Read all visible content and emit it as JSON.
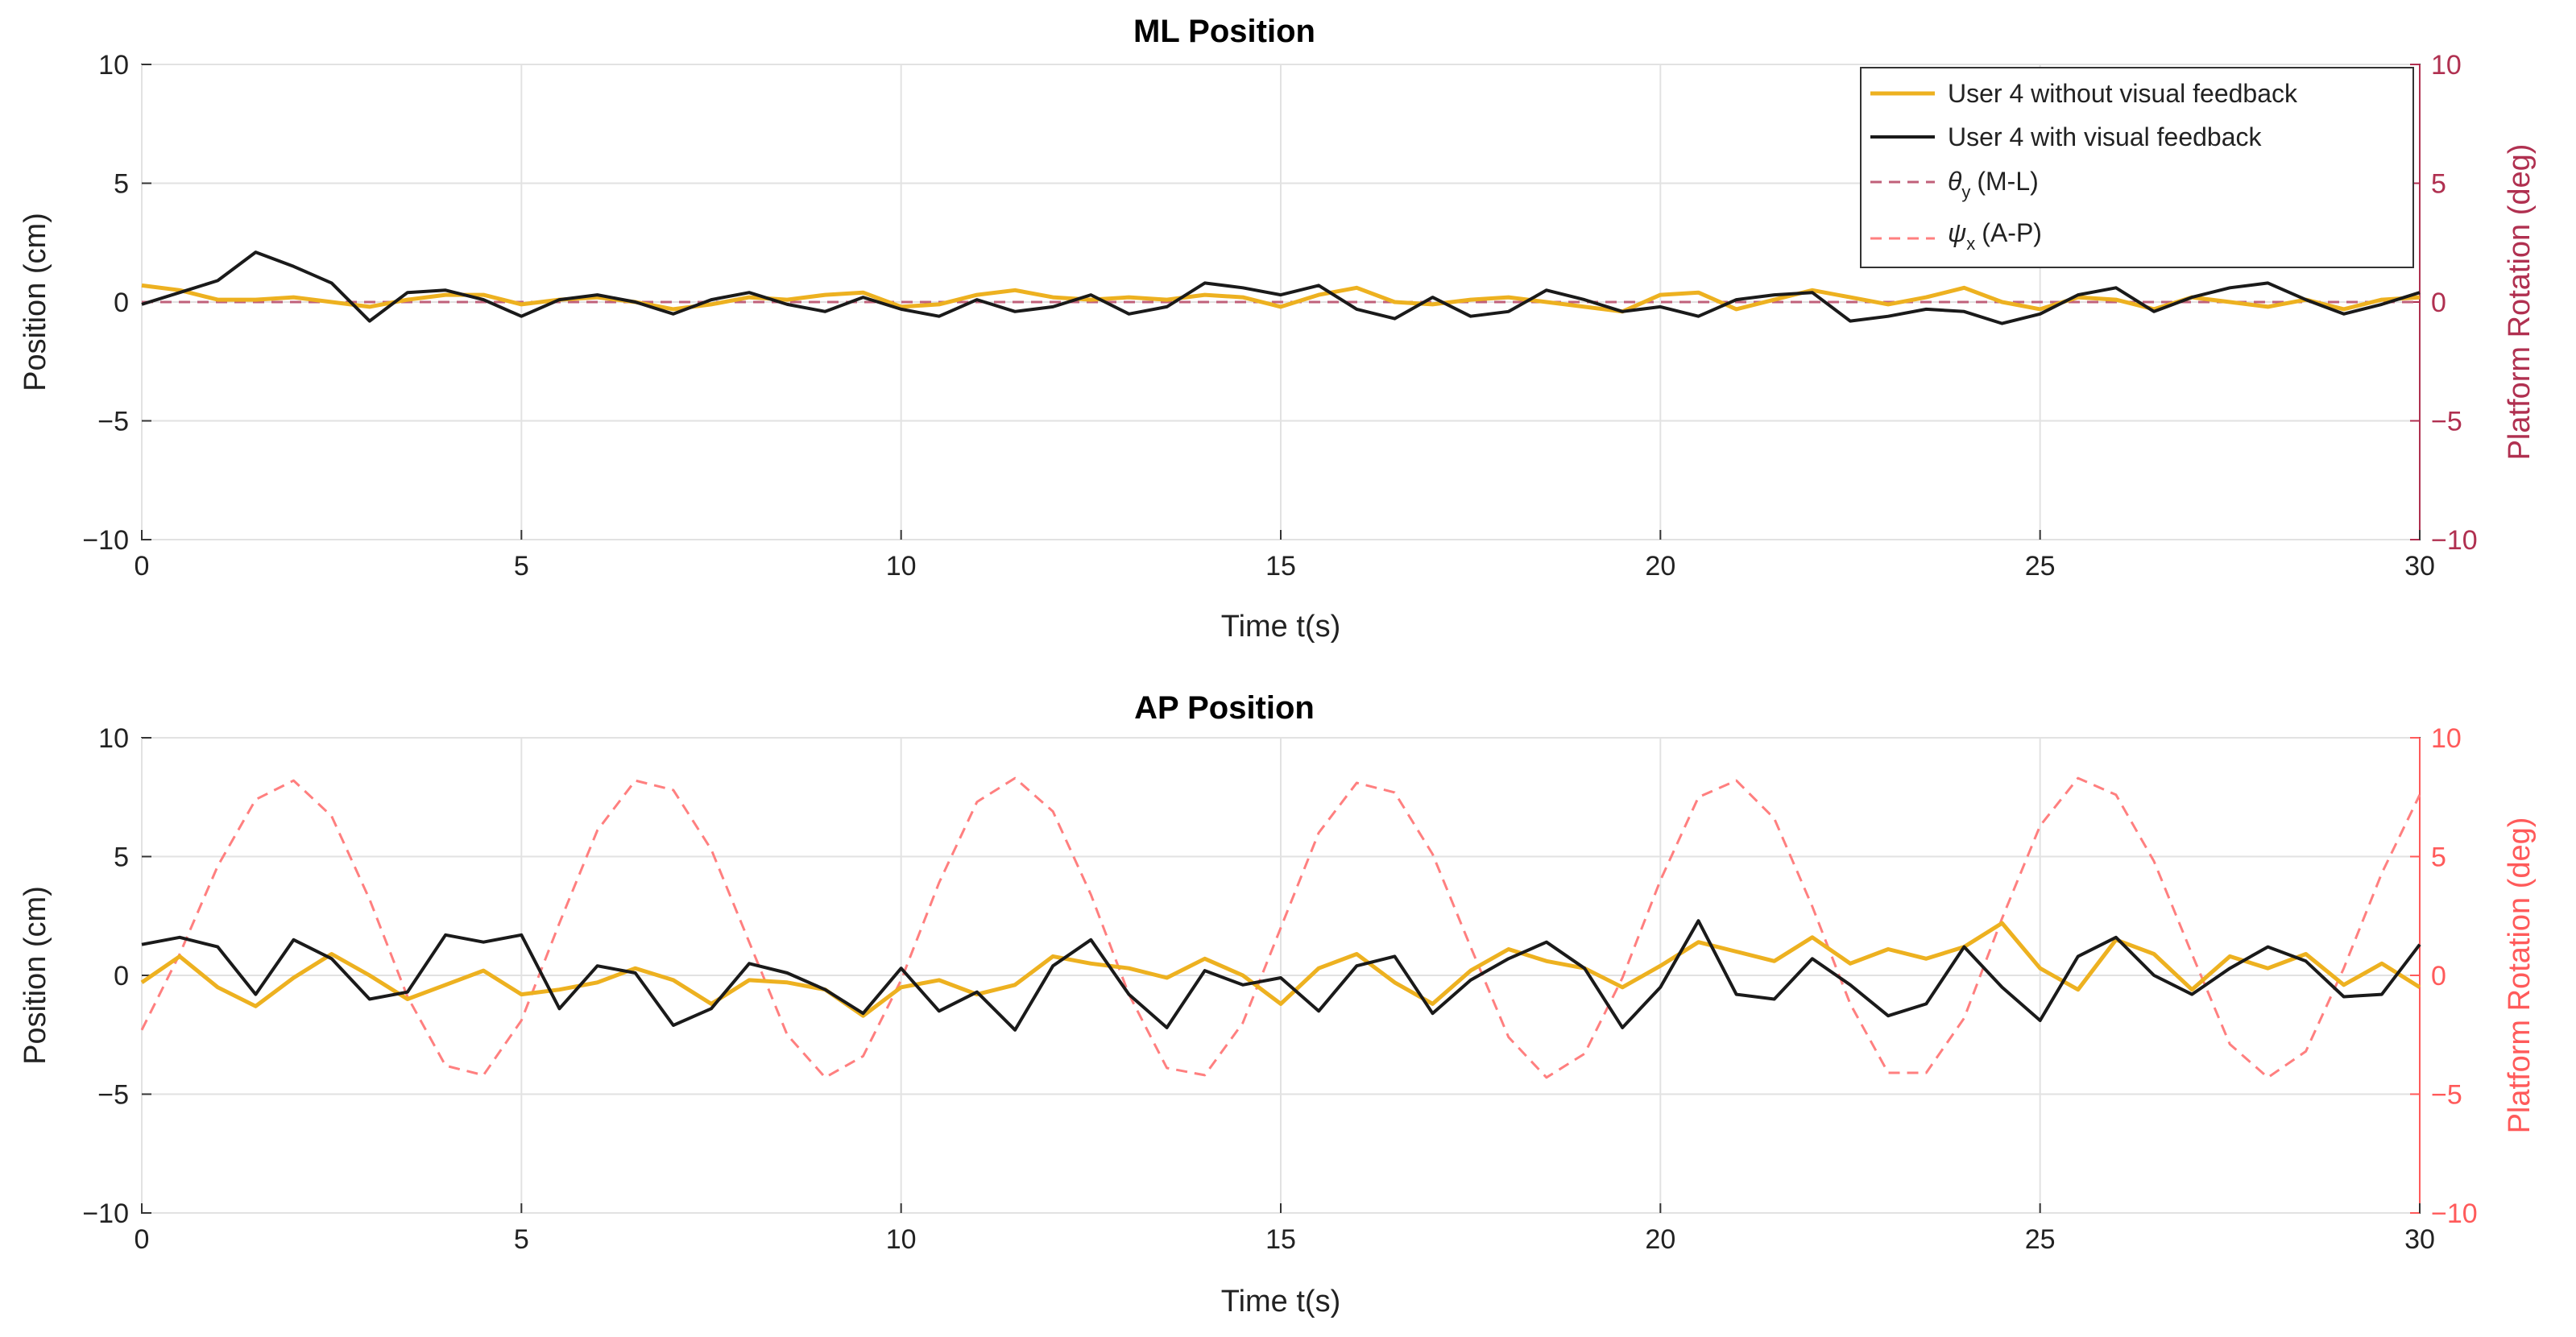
{
  "colors": {
    "without_feedback": "#EDB120",
    "with_feedback": "#1a1a1a",
    "rot_theta": "#c0607a",
    "rot_psi": "#ff7f7f",
    "right_label_ml": "#b03050",
    "right_label_ap": "#ff5a5a"
  },
  "chart_data": [
    {
      "type": "line",
      "title": "ML Position",
      "xlabel": "Time t(s)",
      "ylabel": "Position (cm)",
      "y2label": "Platform Rotation (deg)",
      "xlim": [
        0,
        30
      ],
      "ylim": [
        -10,
        10
      ],
      "y2lim": [
        -10,
        10
      ],
      "xticks": [
        "0",
        "5",
        "10",
        "15",
        "20",
        "25",
        "30"
      ],
      "yticks": [
        "10",
        "5",
        "0",
        "-5",
        "-10"
      ],
      "y2ticks": [
        "10",
        "5",
        "0",
        "-5",
        "-10"
      ],
      "grid": true,
      "legend": {
        "placement": "top-right",
        "entries": [
          {
            "label": "User 4 without visual feedback"
          },
          {
            "label": "User 4 with visual feedback"
          },
          {
            "sym": "θ",
            "sub": "y",
            "text": "(M-L)"
          },
          {
            "sym": "ψ",
            "sub": "x",
            "text": "(A-P)"
          }
        ]
      },
      "x": [
        0,
        0.5,
        1,
        1.5,
        2,
        2.5,
        3,
        3.5,
        4,
        4.5,
        5,
        5.5,
        6,
        6.5,
        7,
        7.5,
        8,
        8.5,
        9,
        9.5,
        10,
        10.5,
        11,
        11.5,
        12,
        12.5,
        13,
        13.5,
        14,
        14.5,
        15,
        15.5,
        16,
        16.5,
        17,
        17.5,
        18,
        18.5,
        19,
        19.5,
        20,
        20.5,
        21,
        21.5,
        22,
        22.5,
        23,
        23.5,
        24,
        24.5,
        25,
        25.5,
        26,
        26.5,
        27,
        27.5,
        28,
        28.5,
        29,
        29.5,
        30
      ],
      "series": [
        {
          "name": "User 4 without visual feedback",
          "values": [
            0.7,
            0.5,
            0.1,
            0.1,
            0.2,
            0,
            -0.2,
            0.1,
            0.3,
            0.3,
            -0.1,
            0.1,
            0.2,
            0,
            -0.3,
            -0.1,
            0.2,
            0.1,
            0.3,
            0.4,
            -0.2,
            -0.1,
            0.3,
            0.5,
            0.2,
            0.1,
            0.2,
            0.1,
            0.3,
            0.2,
            -0.2,
            0.3,
            0.6,
            0,
            -0.1,
            0.1,
            0.2,
            0,
            -0.2,
            -0.4,
            0.3,
            0.4,
            -0.3,
            0.1,
            0.5,
            0.2,
            -0.1,
            0.2,
            0.6,
            0,
            -0.3,
            0.2,
            0.1,
            -0.3,
            0.2,
            0,
            -0.2,
            0.1,
            -0.3,
            0.1,
            0.2
          ]
        },
        {
          "name": "User 4 with visual feedback",
          "values": [
            -0.1,
            0.4,
            0.9,
            2.1,
            1.5,
            0.8,
            -0.8,
            0.4,
            0.5,
            0.1,
            -0.6,
            0.1,
            0.3,
            0,
            -0.5,
            0.1,
            0.4,
            -0.1,
            -0.4,
            0.2,
            -0.3,
            -0.6,
            0.1,
            -0.4,
            -0.2,
            0.3,
            -0.5,
            -0.2,
            0.8,
            0.6,
            0.3,
            0.7,
            -0.3,
            -0.7,
            0.2,
            -0.6,
            -0.4,
            0.5,
            0.1,
            -0.4,
            -0.2,
            -0.6,
            0.1,
            0.3,
            0.4,
            -0.8,
            -0.6,
            -0.3,
            -0.4,
            -0.9,
            -0.5,
            0.3,
            0.6,
            -0.4,
            0.2,
            0.6,
            0.8,
            0.1,
            -0.5,
            -0.1,
            0.4
          ]
        },
        {
          "name": "θy (M-L)",
          "axis": "right",
          "style": "dashed",
          "values": [
            0,
            0,
            0,
            0,
            0,
            0,
            0,
            0,
            0,
            0,
            0,
            0,
            0,
            0,
            0,
            0,
            0,
            0,
            0,
            0,
            0,
            0,
            0,
            0,
            0,
            0,
            0,
            0,
            0,
            0,
            0,
            0,
            0,
            0,
            0,
            0,
            0,
            0,
            0,
            0,
            0,
            0,
            0,
            0,
            0,
            0,
            0,
            0,
            0,
            0,
            0,
            0,
            0,
            0,
            0,
            0,
            0,
            0,
            0,
            0,
            0
          ]
        }
      ]
    },
    {
      "type": "line",
      "title": "AP Position",
      "xlabel": "Time t(s)",
      "ylabel": "Position (cm)",
      "y2label": "Platform Rotation (deg)",
      "xlim": [
        0,
        30
      ],
      "ylim": [
        -10,
        10
      ],
      "y2lim": [
        -10,
        10
      ],
      "xticks": [
        "0",
        "5",
        "10",
        "15",
        "20",
        "25",
        "30"
      ],
      "yticks": [
        "10",
        "5",
        "0",
        "-5",
        "-10"
      ],
      "y2ticks": [
        "10",
        "5",
        "0",
        "-5",
        "-10"
      ],
      "grid": true,
      "x": [
        0,
        0.5,
        1,
        1.5,
        2,
        2.5,
        3,
        3.5,
        4,
        4.5,
        5,
        5.5,
        6,
        6.5,
        7,
        7.5,
        8,
        8.5,
        9,
        9.5,
        10,
        10.5,
        11,
        11.5,
        12,
        12.5,
        13,
        13.5,
        14,
        14.5,
        15,
        15.5,
        16,
        16.5,
        17,
        17.5,
        18,
        18.5,
        19,
        19.5,
        20,
        20.5,
        21,
        21.5,
        22,
        22.5,
        23,
        23.5,
        24,
        24.5,
        25,
        25.5,
        26,
        26.5,
        27,
        27.5,
        28,
        28.5,
        29,
        29.5,
        30
      ],
      "series": [
        {
          "name": "User 4 without visual feedback",
          "values": [
            -0.3,
            0.8,
            -0.5,
            -1.3,
            -0.1,
            0.9,
            0,
            -1,
            -0.4,
            0.2,
            -0.8,
            -0.6,
            -0.3,
            0.3,
            -0.2,
            -1.2,
            -0.2,
            -0.3,
            -0.6,
            -1.7,
            -0.5,
            -0.2,
            -0.8,
            -0.4,
            0.8,
            0.5,
            0.3,
            -0.1,
            0.7,
            0,
            -1.2,
            0.3,
            0.9,
            -0.3,
            -1.2,
            0.2,
            1.1,
            0.6,
            0.3,
            -0.5,
            0.4,
            1.4,
            1,
            0.6,
            1.6,
            0.5,
            1.1,
            0.7,
            1.2,
            2.2,
            0.3,
            -0.6,
            1.5,
            0.9,
            -0.6,
            0.8,
            0.3,
            0.9,
            -0.4,
            0.5,
            -0.5
          ]
        },
        {
          "name": "User 4 with visual feedback",
          "values": [
            1.3,
            1.6,
            1.2,
            -0.8,
            1.5,
            0.7,
            -1,
            -0.7,
            1.7,
            1.4,
            1.7,
            -1.4,
            0.4,
            0.1,
            -2.1,
            -1.4,
            0.5,
            0.1,
            -0.6,
            -1.6,
            0.3,
            -1.5,
            -0.7,
            -2.3,
            0.4,
            1.5,
            -0.8,
            -2.2,
            0.2,
            -0.4,
            -0.1,
            -1.5,
            0.4,
            0.8,
            -1.6,
            -0.2,
            0.7,
            1.4,
            0.3,
            -2.2,
            -0.5,
            2.3,
            -0.8,
            -1,
            0.7,
            -0.4,
            -1.7,
            -1.2,
            1.2,
            -0.5,
            -1.9,
            0.8,
            1.6,
            0,
            -0.8,
            0.3,
            1.2,
            0.6,
            -0.9,
            -0.8,
            1.3
          ]
        },
        {
          "name": "ψx (A-P)",
          "axis": "right",
          "style": "dashed",
          "values": [
            -2.3,
            0.9,
            4.6,
            7.4,
            8.2,
            6.7,
            3.2,
            -0.9,
            -3.8,
            -4.2,
            -1.9,
            2.2,
            6.1,
            8.2,
            7.8,
            5.3,
            1.4,
            -2.5,
            -4.3,
            -3.4,
            -0.2,
            3.9,
            7.3,
            8.3,
            6.9,
            3.4,
            -0.8,
            -3.9,
            -4.2,
            -2,
            2,
            6,
            8.1,
            7.7,
            5.1,
            1.2,
            -2.6,
            -4.3,
            -3.3,
            -0.1,
            4,
            7.5,
            8.2,
            6.6,
            2.9,
            -1.2,
            -4.1,
            -4.1,
            -1.8,
            2.4,
            6.3,
            8.3,
            7.6,
            4.8,
            0.9,
            -2.9,
            -4.3,
            -3.2,
            0.3,
            4.3,
            7.6
          ]
        }
      ]
    }
  ]
}
